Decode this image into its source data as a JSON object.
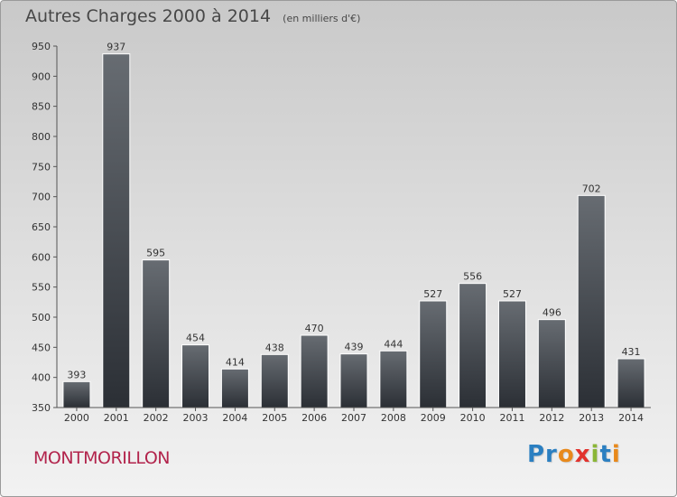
{
  "header": {
    "title": "Autres Charges 2000 à 2014",
    "subtitle": "(en milliers d'€)"
  },
  "footer": {
    "commune": "MONTMORILLON",
    "logo_text": "Proxiti",
    "logo_parts": [
      "Pr",
      "o",
      "x",
      "i",
      "t",
      "i"
    ]
  },
  "chart_data": {
    "type": "bar",
    "title": "Autres Charges 2000 à 2014",
    "subtitle": "(en milliers d'€)",
    "categories": [
      "2000",
      "2001",
      "2002",
      "2003",
      "2004",
      "2005",
      "2006",
      "2007",
      "2008",
      "2009",
      "2010",
      "2011",
      "2012",
      "2013",
      "2014"
    ],
    "values": [
      393,
      937,
      595,
      454,
      414,
      438,
      470,
      439,
      444,
      527,
      556,
      527,
      496,
      702,
      431
    ],
    "ylim": [
      350,
      950
    ],
    "yticks": [
      350,
      400,
      450,
      500,
      550,
      600,
      650,
      700,
      750,
      800,
      850,
      900,
      950
    ],
    "grid": false,
    "colors": {
      "bar_top": "#676c72",
      "bar_bottom": "#2b2f35",
      "axis": "#555555",
      "text": "#333333"
    }
  }
}
